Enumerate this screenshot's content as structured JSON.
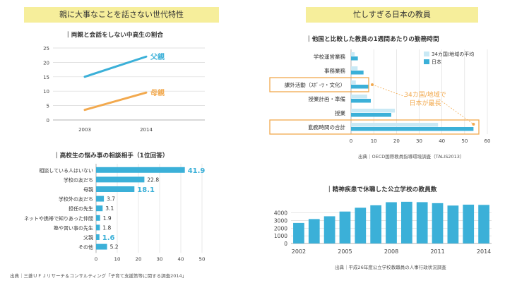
{
  "left_banner": "親に大事なことを話さない世代特性",
  "right_banner": "忙しすぎる日本の教員",
  "left_source": "出典｜三菱ＵＦＪリサーチ＆コンサルティング「子育て支援策等に関する調査2014」",
  "mid_source": "出典｜OECD国際教員指導環境調査（TALIS2013）",
  "right_source": "出典｜平成26年度公立学校教職員の人事行政状況調査",
  "chart_data": [
    {
      "type": "line",
      "title": "両親と会話をしない中高生の割合",
      "x": [
        "2003",
        "2014"
      ],
      "series": [
        {
          "name": "父親",
          "values": [
            15,
            22
          ],
          "color": "#3bb0d8"
        },
        {
          "name": "母親",
          "values": [
            3.5,
            9.5
          ],
          "color": "#f2a94e"
        }
      ],
      "ylim": [
        0,
        25
      ],
      "yticks": [
        "0",
        "5",
        "10",
        "15",
        "20",
        "25"
      ],
      "grid": true
    },
    {
      "type": "bar",
      "orientation": "horizontal",
      "title": "高校生の悩み事の相談相手（1位回答）",
      "categories": [
        "相談している人はいない",
        "学校の友だち",
        "母親",
        "学校外の友だち",
        "担任の先生",
        "ネットや携帯で知りあった仲間",
        "塾や習い事の先生",
        "父親",
        "その他"
      ],
      "values": [
        41.9,
        22.8,
        18.1,
        3.7,
        3.1,
        1.9,
        1.8,
        1.6,
        5.2
      ],
      "labels": [
        "41.9",
        "22.8",
        "18.1",
        "3.7",
        "3.1",
        "1.9",
        "1.8",
        "1.6",
        "5.2"
      ],
      "highlight": [
        true,
        false,
        true,
        false,
        false,
        false,
        false,
        true,
        false
      ],
      "xlim": [
        0,
        50
      ],
      "xticks": [
        "0",
        "10",
        "20",
        "30",
        "40",
        "50"
      ],
      "color": "#3bb0d8"
    },
    {
      "type": "bar",
      "orientation": "horizontal",
      "title": "他国と比較した教員の1週間あたりの勤務時間",
      "categories": [
        "学校運営業務",
        "事務業務",
        "課外活動（ｽﾎﾟｰﾂ・文化）",
        "授業計画・準備",
        "授業",
        "勤務時間の合計"
      ],
      "series": [
        {
          "name": "34カ国/地域の平均",
          "values": [
            1.6,
            2.9,
            2.1,
            7.1,
            19.3,
            38.3
          ],
          "color": "#c9e9f5"
        },
        {
          "name": "日本",
          "values": [
            3.0,
            5.5,
            7.7,
            8.7,
            17.7,
            53.9
          ],
          "color": "#3bb0d8"
        }
      ],
      "boxed": [
        "課外活動（ｽﾎﾟｰﾂ・文化）",
        "勤務時間の合計"
      ],
      "annotation": "34カ国/地域で\n日本が最長",
      "xlim": [
        0,
        60
      ],
      "xticks": [
        "0",
        "10",
        "20",
        "30",
        "40",
        "50",
        "60"
      ]
    },
    {
      "type": "bar",
      "title": "精神疾患で休職した公立学校の教員数",
      "x": [
        2002,
        2003,
        2004,
        2005,
        2006,
        2007,
        2008,
        2009,
        2010,
        2011,
        2012,
        2013,
        2014
      ],
      "values": [
        2687,
        3194,
        3559,
        4178,
        4675,
        4995,
        5400,
        5458,
        5407,
        5274,
        4960,
        5078,
        5045
      ],
      "xticks": [
        "2002",
        "2005",
        "2008",
        "2011",
        "2014"
      ],
      "ylim": [
        0,
        6000
      ],
      "yticks": [
        "0",
        "1000",
        "2000",
        "3000",
        "4000"
      ],
      "grid": true,
      "color": "#3bb0d8"
    }
  ]
}
